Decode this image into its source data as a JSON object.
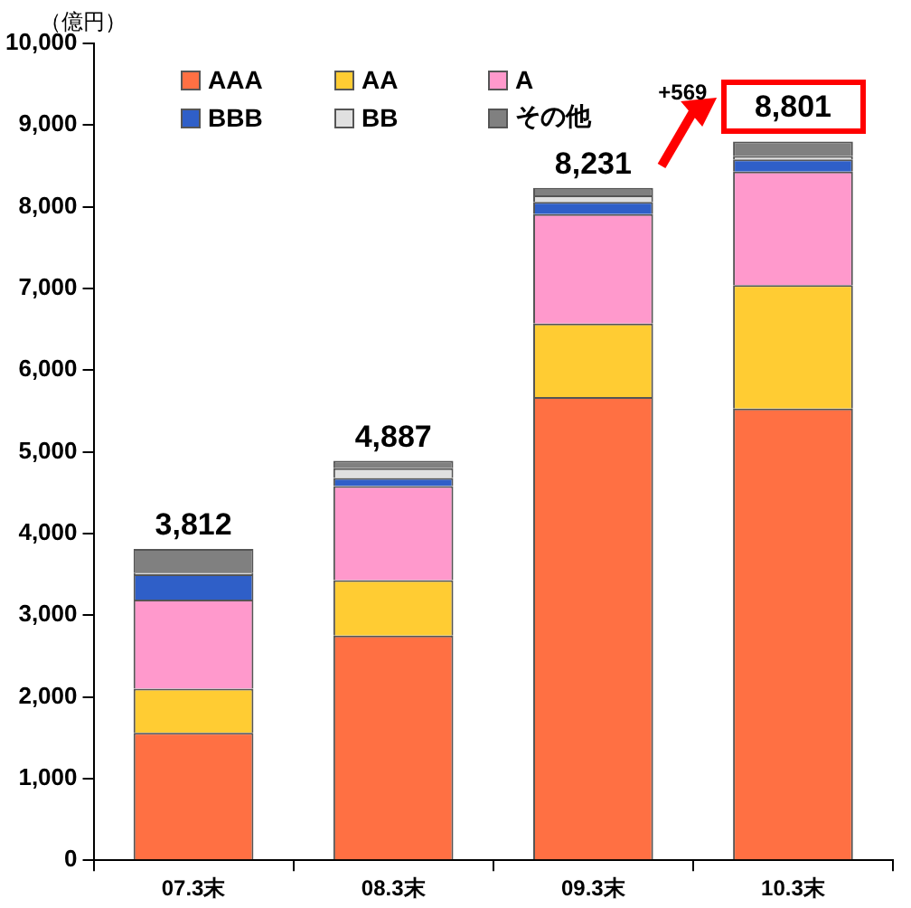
{
  "chart_data": {
    "type": "bar",
    "stacked": true,
    "ylabel": "（億円）",
    "categories": [
      "07.3末",
      "08.3末",
      "09.3末",
      "10.3末"
    ],
    "series": [
      {
        "name": "AAA",
        "color": "#ff7043",
        "values": [
          1560,
          2750,
          5670,
          5530
        ]
      },
      {
        "name": "AA",
        "color": "#ffcc33",
        "values": [
          540,
          680,
          900,
          1510
        ]
      },
      {
        "name": "A",
        "color": "#ff99cc",
        "values": [
          1090,
          1150,
          1340,
          1390
        ]
      },
      {
        "name": "BBB",
        "color": "#2f5fc8",
        "values": [
          310,
          100,
          150,
          150
        ]
      },
      {
        "name": "BB",
        "color": "#e0e0e0",
        "values": [
          20,
          120,
          80,
          40
        ]
      },
      {
        "name": "その他",
        "color": "#808080",
        "values": [
          290,
          90,
          90,
          180
        ]
      }
    ],
    "totals": [
      "3,812",
      "4,887",
      "8,231",
      "8,801"
    ],
    "annotations": [
      "+569"
    ],
    "ylim": [
      0,
      10000
    ],
    "yticks": [
      {
        "value": 0,
        "label": "0"
      },
      {
        "value": 1000,
        "label": "1,000"
      },
      {
        "value": 2000,
        "label": "2,000"
      },
      {
        "value": 3000,
        "label": "3,000"
      },
      {
        "value": 4000,
        "label": "4,000"
      },
      {
        "value": 5000,
        "label": "5,000"
      },
      {
        "value": 6000,
        "label": "6,000"
      },
      {
        "value": 7000,
        "label": "7,000"
      },
      {
        "value": 8000,
        "label": "8,000"
      },
      {
        "value": 9000,
        "label": "9,000"
      },
      {
        "value": 10000,
        "label": "10,000"
      }
    ],
    "grid": false,
    "legend": "top"
  }
}
